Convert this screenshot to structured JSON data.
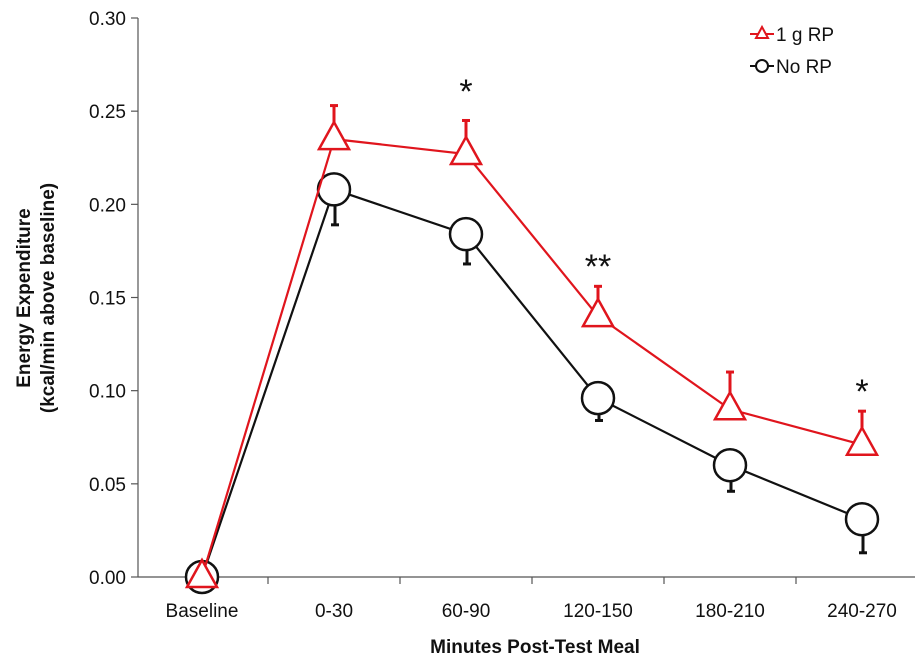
{
  "chart_data": {
    "type": "line",
    "categories": [
      "Baseline",
      "0-30",
      "60-90",
      "120-150",
      "180-210",
      "240-270"
    ],
    "xlabel": "Minutes Post-Test Meal",
    "ylabel_line1": "Energy Expenditure",
    "ylabel_line2": "(kcal/min above baseline)",
    "ylim": [
      0,
      0.3
    ],
    "yticks": [
      "0.00",
      "0.05",
      "0.10",
      "0.15",
      "0.20",
      "0.25",
      "0.30"
    ],
    "legend_position": "top-right",
    "series": [
      {
        "name": "1 g RP",
        "color": "#e0151d",
        "marker": "triangle",
        "values": [
          0,
          0.235,
          0.227,
          0.14,
          0.09,
          0.071
        ],
        "errors": [
          0,
          0.018,
          0.018,
          0.016,
          0.02,
          0.018
        ]
      },
      {
        "name": "No RP",
        "color": "#111111",
        "marker": "circle",
        "values": [
          0,
          0.208,
          0.184,
          0.096,
          0.06,
          0.031
        ],
        "errors": [
          0,
          0.019,
          0.016,
          0.012,
          0.014,
          0.018
        ]
      }
    ],
    "annotations": [
      {
        "category": "60-90",
        "text": "*",
        "value": 0.262
      },
      {
        "category": "120-150",
        "text": "**",
        "value": 0.168
      },
      {
        "category": "240-270",
        "text": "*",
        "value": 0.101
      }
    ]
  }
}
